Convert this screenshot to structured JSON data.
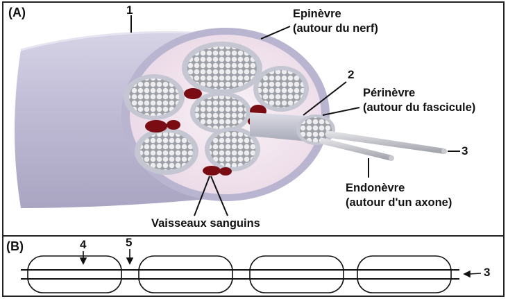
{
  "panels": {
    "a": "(A)",
    "b": "(B)"
  },
  "labels": {
    "num1": "1",
    "num2": "2",
    "num3_a": "3",
    "num3_b": "3",
    "num4": "4",
    "num5": "5",
    "epinevre_line1": "Epinèvre",
    "epinevre_line2": "(autour du nerf)",
    "perinevre_line1": "Périnèvre",
    "perinevre_line2": "(autour du fascicule)",
    "endonevre_line1": "Endonèvre",
    "endonevre_line2": "(autour d'un axone)",
    "vaisseaux": "Vaisseaux sanguins"
  },
  "colors": {
    "nerve_outer": "#c9c5dc",
    "nerve_face": "#f1e2ee",
    "fascicle": "#d8d8dc",
    "blood_vessel": "#7a0d14",
    "axon": "#bfc0c6"
  }
}
